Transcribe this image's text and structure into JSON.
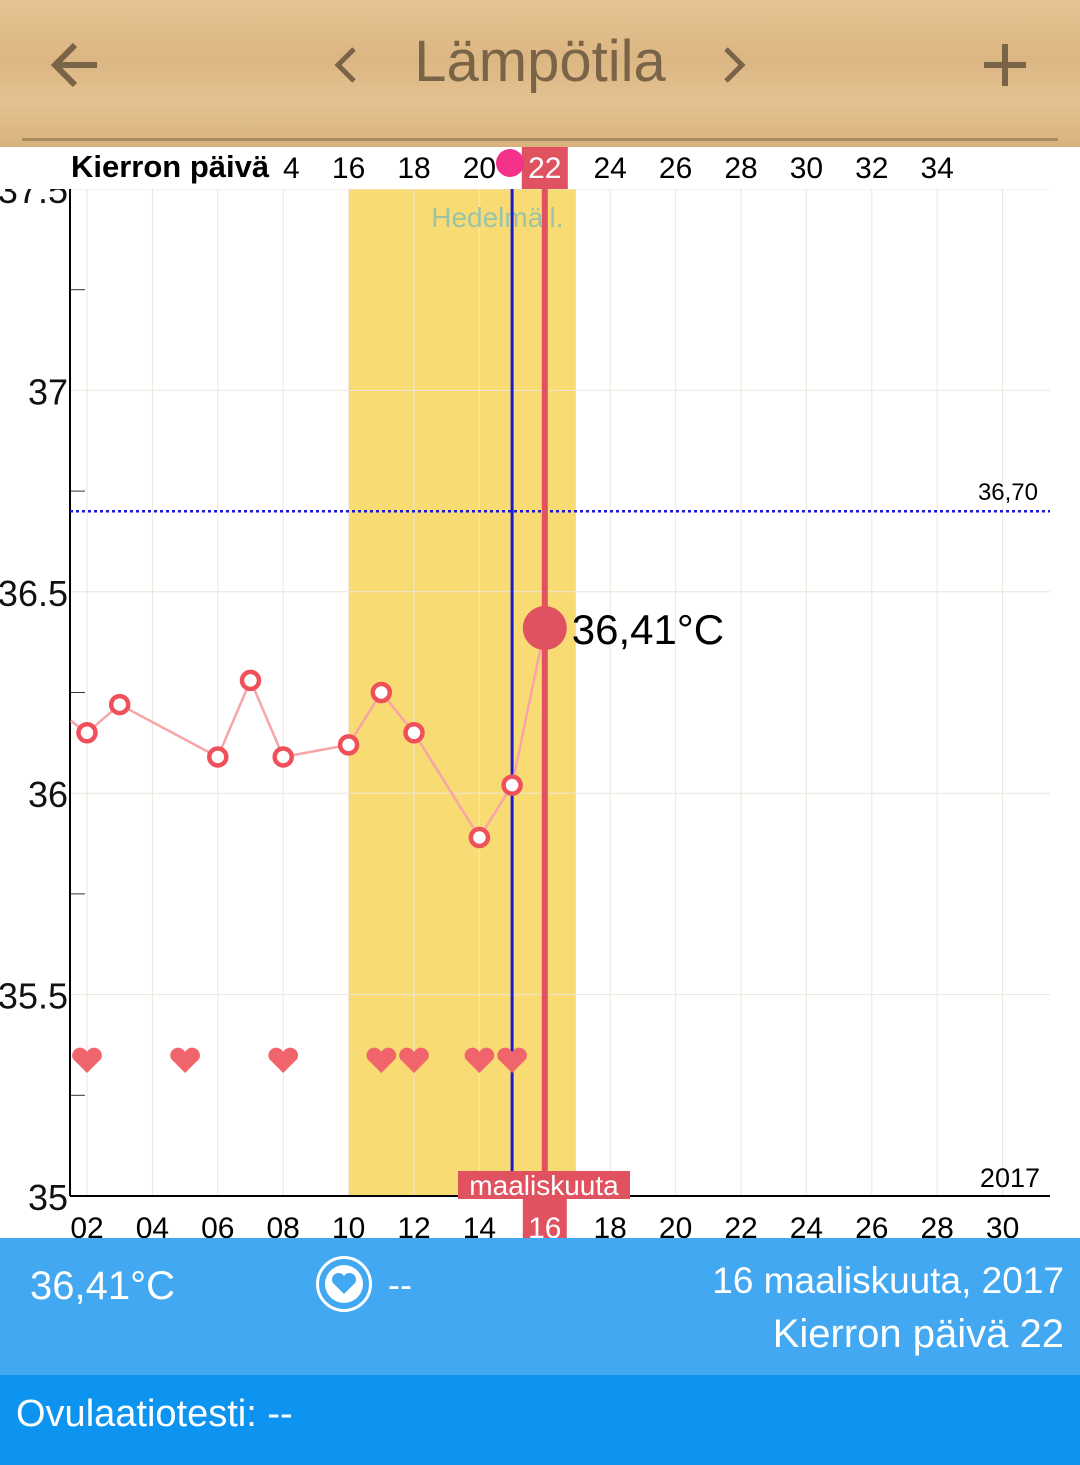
{
  "header": {
    "title": "Lämpötila",
    "back_icon": "arrow-left-icon",
    "prev_icon": "chevron-left-icon",
    "next_icon": "chevron-right-icon",
    "add_icon": "plus-icon"
  },
  "chart_data": {
    "type": "line",
    "ylim": [
      35,
      37.5
    ],
    "yticks": [
      "35",
      "35.5",
      "36",
      "36.5",
      "37",
      "37.5"
    ],
    "ytick_values": [
      35,
      35.5,
      36,
      36.5,
      37,
      37.5
    ],
    "x_day_labels": [
      "02",
      "04",
      "06",
      "08",
      "10",
      "12",
      "14",
      "16",
      "18",
      "20",
      "22",
      "24",
      "26",
      "28",
      "30"
    ],
    "x_days": [
      2,
      4,
      6,
      8,
      10,
      12,
      14,
      16,
      18,
      20,
      22,
      24,
      26,
      28,
      30
    ],
    "cycle_label": "Kierron päivä",
    "cycle_labels": [
      "4",
      "16",
      "18",
      "20",
      "22",
      "24",
      "26",
      "28",
      "30",
      "32",
      "34"
    ],
    "cycle_label_days": [
      8.25,
      10,
      12,
      14,
      16,
      18,
      20,
      22,
      24,
      26,
      28
    ],
    "month_label": "maaliskuuta",
    "year_label": "2017",
    "selected_day": 16,
    "selected_cycle_day": "22",
    "series": [
      {
        "name": "temperature",
        "x": [
          1.5,
          2,
          3,
          6,
          7,
          8,
          10,
          11,
          12,
          14,
          15,
          16
        ],
        "y": [
          36.18,
          36.15,
          36.22,
          36.09,
          36.28,
          36.09,
          36.12,
          36.25,
          36.15,
          35.89,
          36.02,
          36.41
        ]
      }
    ],
    "selected_value_label": "36,41°C",
    "coverline": 36.7,
    "coverline_label": "36,70",
    "fertile_window": [
      10,
      16.95
    ],
    "fertile_label": "Hedelmäll.",
    "ovulation_day": 15,
    "intercourse_days": [
      2,
      5,
      8,
      11,
      12,
      14,
      15
    ],
    "colors": {
      "point": "#f0505a",
      "line": "#f7a5a8",
      "fertile": "#f9db73",
      "selected": "#e05260",
      "coverline": "#1a1ad0",
      "ovulation": "#1a1ad0",
      "heart": "#f0646c"
    }
  },
  "info": {
    "temperature": "36,41°C",
    "intercourse_value": "--",
    "date": "16 maaliskuuta, 2017",
    "cycle_day": "Kierron päivä 22"
  },
  "ovulation_test": {
    "label": "Ovulaatiotesti: --"
  }
}
